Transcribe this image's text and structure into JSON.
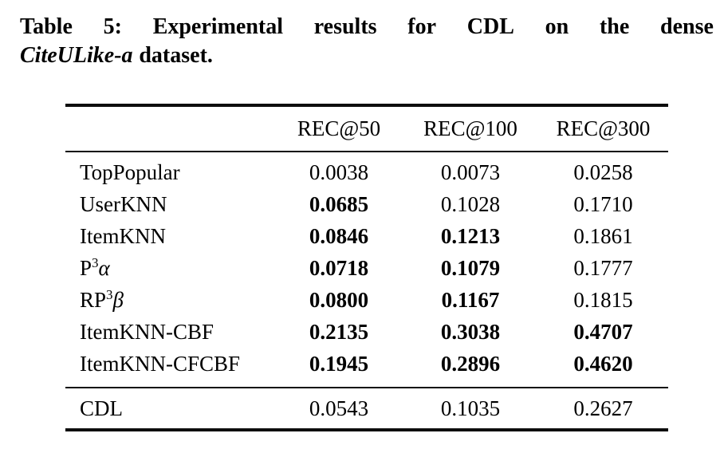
{
  "caption": {
    "line1": "Table 5: Experimental results for CDL on the dense",
    "line2_italic": "CiteULike-a",
    "line2_rest": "dataset."
  },
  "table": {
    "columns": [
      "REC@50",
      "REC@100",
      "REC@300"
    ],
    "rows": [
      {
        "label": {
          "pre": "TopPopular"
        },
        "values": [
          "0.0038",
          "0.0073",
          "0.0258"
        ],
        "bold": [
          false,
          false,
          false
        ]
      },
      {
        "label": {
          "pre": "UserKNN"
        },
        "values": [
          "0.0685",
          "0.1028",
          "0.1710"
        ],
        "bold": [
          true,
          false,
          false
        ]
      },
      {
        "label": {
          "pre": "ItemKNN"
        },
        "values": [
          "0.0846",
          "0.1213",
          "0.1861"
        ],
        "bold": [
          true,
          true,
          false
        ]
      },
      {
        "label": {
          "pre": "P",
          "sup": "3",
          "post": "α"
        },
        "values": [
          "0.0718",
          "0.1079",
          "0.1777"
        ],
        "bold": [
          true,
          true,
          false
        ]
      },
      {
        "label": {
          "pre": "RP",
          "sup": "3",
          "post": "β"
        },
        "values": [
          "0.0800",
          "0.1167",
          "0.1815"
        ],
        "bold": [
          true,
          true,
          false
        ]
      },
      {
        "label": {
          "pre": "ItemKNN-CBF"
        },
        "values": [
          "0.2135",
          "0.3038",
          "0.4707"
        ],
        "bold": [
          true,
          true,
          true
        ]
      },
      {
        "label": {
          "pre": "ItemKNN-CFCBF"
        },
        "values": [
          "0.1945",
          "0.2896",
          "0.4620"
        ],
        "bold": [
          true,
          true,
          true
        ]
      }
    ],
    "footer_row": {
      "label": {
        "pre": "CDL"
      },
      "values": [
        "0.0543",
        "0.1035",
        "0.2627"
      ],
      "bold": [
        false,
        false,
        false
      ]
    }
  },
  "colors": {
    "text": "#000000",
    "rule": "#0d0d0d",
    "background": "#ffffff"
  }
}
